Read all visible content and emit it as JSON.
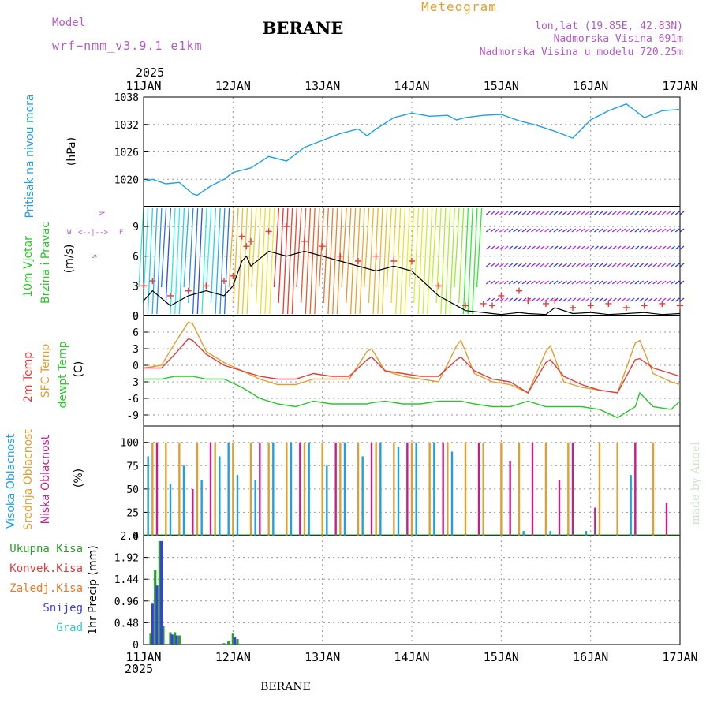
{
  "header": {
    "model_label": "Model",
    "model_name": "wrf−nmm_v3.9.1  e1km",
    "station": "BERANE",
    "meteogram": "Meteogram",
    "coords": "lon,lat (19.85E, 42.83N)",
    "altitude": "Nadmorska Visina 691m",
    "model_altitude": "Nadmorska Visina u modelu 720.25m",
    "footer_station": "BERANE",
    "credit": "made by Angel"
  },
  "colors": {
    "pressure": "#1ea0e6",
    "wind_speed": "#000000",
    "gust": "#e63c3c",
    "temp2m": "#e63c3c",
    "sfc_temp": "#e0a030",
    "dewpt": "#28c828",
    "high_cloud": "#1ea0e6",
    "mid_cloud": "#e0a030",
    "low_cloud": "#c81e8c",
    "total_precip": "#28a028",
    "conv_precip": "#e63c3c",
    "frozen_precip": "#f07828",
    "snow": "#3c3ce6",
    "graupel": "#28c8c8",
    "label_purple": "#b45ac8"
  },
  "chart_data": [
    {
      "type": "line",
      "panel": "pressure",
      "ylabel": "Pritisak na nivou mora",
      "unit": "(hPa)",
      "ylim": [
        1014,
        1038
      ],
      "yticks": [
        "1020",
        "1026",
        "1032",
        "1038"
      ],
      "year": "2025",
      "x_top_labels": [
        "11JAN",
        "12JAN",
        "13JAN",
        "14JAN",
        "15JAN",
        "16JAN",
        "17JAN"
      ],
      "x": [
        0,
        0.1,
        0.25,
        0.4,
        0.55,
        0.6,
        0.75,
        0.9,
        1.0,
        1.2,
        1.4,
        1.6,
        1.8,
        2.0,
        2.2,
        2.4,
        2.5,
        2.6,
        2.8,
        3.0,
        3.2,
        3.4,
        3.5,
        3.6,
        3.8,
        4.0,
        4.2,
        4.4,
        4.6,
        4.8,
        5.0,
        5.2,
        5.4,
        5.6,
        5.8,
        6.0
      ],
      "series": [
        {
          "values": [
            1019.5,
            1020.0,
            1019.0,
            1019.3,
            1016.8,
            1016.5,
            1018.5,
            1020.0,
            1021.5,
            1022.5,
            1025.0,
            1024.0,
            1027.0,
            1028.5,
            1030.0,
            1031.0,
            1029.5,
            1031.0,
            1033.5,
            1034.5,
            1033.8,
            1034.0,
            1033.0,
            1033.5,
            1034.0,
            1034.2,
            1032.8,
            1031.8,
            1030.5,
            1029.0,
            1033.0,
            1035.0,
            1036.5,
            1033.5,
            1035.0,
            1035.3
          ]
        }
      ]
    },
    {
      "type": "line",
      "panel": "wind",
      "ylabel": "10m Vjetar",
      "ylabel2": "Brzina i Pravac",
      "unit": "(m/s)",
      "compass": {
        "n": "N",
        "s": "S",
        "e": "E",
        "w": "W",
        "arrows": "<--|-->"
      },
      "ylim": [
        0,
        11
      ],
      "yticks": [
        "0",
        "3",
        "6",
        "9"
      ],
      "x": [
        0,
        0.1,
        0.3,
        0.5,
        0.7,
        0.9,
        1.0,
        1.1,
        1.15,
        1.2,
        1.4,
        1.6,
        1.8,
        2.0,
        2.2,
        2.4,
        2.6,
        2.8,
        3.0,
        3.3,
        3.6,
        3.8,
        3.9,
        4.0,
        4.2,
        4.3,
        4.5,
        4.6,
        4.8,
        5.0,
        5.2,
        5.4,
        5.6,
        5.8,
        6.0
      ],
      "series": [
        {
          "name": "speed",
          "values": [
            1.5,
            2.5,
            1.0,
            2.0,
            2.5,
            2.0,
            3.0,
            5.5,
            6.0,
            5.0,
            6.5,
            6.0,
            6.5,
            6.0,
            5.5,
            5.0,
            4.5,
            5.0,
            4.5,
            2.0,
            0.5,
            0.3,
            0.2,
            0.1,
            0.3,
            0.2,
            0.1,
            0.8,
            0.2,
            0.3,
            0.1,
            0.2,
            0.3,
            0.1,
            0.2
          ]
        },
        {
          "name": "gust",
          "values": [
            3.0,
            3.5,
            2.0,
            2.5,
            3.0,
            3.5,
            4.0,
            8.0,
            7.0,
            7.5,
            8.5,
            9.0,
            7.5,
            7.0,
            6.0,
            5.5,
            6.0,
            5.5,
            5.5,
            3.0,
            1.0,
            1.2,
            1.0,
            2.0,
            2.5,
            1.5,
            1.2,
            1.5,
            0.8,
            1.0,
            1.2,
            0.8,
            1.0,
            1.2,
            1.0
          ]
        }
      ]
    },
    {
      "type": "line",
      "panel": "temperature",
      "ylabels": [
        "2m Temp",
        "SFC Temp",
        "dewpt Temp"
      ],
      "unit": "(C)",
      "ylim": [
        -11,
        9
      ],
      "yticks": [
        "-9",
        "-6",
        "-3",
        "0",
        "3",
        "6",
        "9"
      ],
      "x": [
        0,
        0.2,
        0.35,
        0.5,
        0.55,
        0.7,
        0.9,
        1.1,
        1.3,
        1.5,
        1.7,
        1.9,
        2.1,
        2.3,
        2.5,
        2.55,
        2.7,
        2.9,
        3.1,
        3.3,
        3.5,
        3.55,
        3.7,
        3.9,
        4.1,
        4.3,
        4.5,
        4.55,
        4.7,
        4.9,
        5.1,
        5.3,
        5.5,
        5.55,
        5.7,
        5.9,
        6.0
      ],
      "series": [
        {
          "name": "2m",
          "values": [
            -0.5,
            -0.5,
            2.0,
            4.8,
            4.5,
            2.0,
            0.0,
            -1.0,
            -2.0,
            -2.5,
            -2.5,
            -1.5,
            -2.0,
            -2.0,
            1.0,
            1.5,
            -1.0,
            -1.5,
            -2.0,
            -2.0,
            1.0,
            1.5,
            -1.0,
            -2.5,
            -3.0,
            -5.0,
            0.5,
            1.0,
            -2.0,
            -3.5,
            -4.5,
            -5.0,
            1.0,
            1.2,
            -0.5,
            -1.5,
            -2.0
          ]
        },
        {
          "name": "sfc",
          "values": [
            -0.5,
            0.0,
            4.0,
            7.8,
            7.5,
            2.5,
            0.5,
            -1.0,
            -2.5,
            -3.5,
            -3.5,
            -2.5,
            -2.5,
            -2.5,
            2.5,
            3.0,
            -1.0,
            -2.0,
            -2.5,
            -3.0,
            3.5,
            4.5,
            -1.5,
            -3.0,
            -3.5,
            -5.0,
            2.5,
            3.5,
            -3.0,
            -4.0,
            -4.5,
            -5.0,
            4.0,
            4.5,
            -1.5,
            -3.0,
            -3.5
          ]
        },
        {
          "name": "dewpt",
          "values": [
            -2.5,
            -2.5,
            -2.0,
            -2.0,
            -2.0,
            -2.5,
            -2.5,
            -4.0,
            -6.0,
            -7.0,
            -7.5,
            -6.5,
            -7.0,
            -7.0,
            -7.0,
            -6.8,
            -6.5,
            -7.0,
            -7.0,
            -6.5,
            -6.5,
            -6.5,
            -7.0,
            -7.5,
            -7.5,
            -6.5,
            -7.5,
            -7.5,
            -7.5,
            -7.5,
            -8.0,
            -9.5,
            -7.5,
            -5.0,
            -7.5,
            -8.0,
            -6.5
          ]
        }
      ]
    },
    {
      "type": "bar",
      "panel": "clouds",
      "ylabels": [
        "Visoka Oblacnost",
        "Srednja Oblacnost",
        "Niska Oblacnost"
      ],
      "unit": "(%)",
      "ylim": [
        0,
        100
      ],
      "yticks": [
        "0",
        "25",
        "50",
        "75",
        "100"
      ],
      "series": [
        {
          "name": "high",
          "x": [
            0.05,
            0.3,
            0.45,
            0.65,
            0.85,
            0.95,
            1.05,
            1.25,
            1.45,
            1.65,
            1.85,
            2.05,
            2.25,
            2.45,
            2.65,
            2.85,
            3.05,
            3.25,
            3.45,
            4.25,
            4.55,
            4.95,
            5.3,
            5.45
          ],
          "values": [
            85,
            55,
            75,
            60,
            85,
            100,
            65,
            60,
            100,
            100,
            100,
            75,
            100,
            85,
            100,
            95,
            100,
            100,
            90,
            5,
            5,
            5,
            28,
            65
          ]
        },
        {
          "name": "mid",
          "x": [
            0.1,
            0.25,
            0.4,
            0.6,
            0.8,
            1.0,
            1.2,
            1.4,
            1.6,
            1.8,
            2.0,
            2.2,
            2.4,
            2.6,
            2.8,
            3.0,
            3.2,
            3.4,
            3.6,
            3.8,
            4.0,
            4.2,
            4.5,
            4.75,
            5.1,
            5.3,
            5.5,
            5.7
          ],
          "values": [
            100,
            100,
            100,
            100,
            100,
            100,
            100,
            100,
            100,
            100,
            100,
            100,
            100,
            100,
            100,
            100,
            100,
            100,
            100,
            100,
            100,
            100,
            100,
            100,
            100,
            100,
            100,
            100
          ]
        },
        {
          "name": "low",
          "x": [
            0.15,
            0.55,
            0.75,
            1.3,
            1.75,
            2.15,
            2.55,
            2.95,
            3.35,
            3.75,
            4.1,
            4.35,
            4.65,
            4.8,
            5.05,
            5.5,
            5.85,
            6.15,
            6.35,
            6.55,
            6.65,
            6.85,
            7.05,
            7.1
          ],
          "values": [
            100,
            50,
            100,
            100,
            100,
            100,
            100,
            100,
            100,
            100,
            80,
            100,
            60,
            100,
            30,
            100,
            35,
            70,
            70,
            95,
            95,
            10,
            35,
            55
          ]
        }
      ]
    },
    {
      "type": "bar",
      "panel": "precip",
      "ylabels": [
        "Ukupna Kisa",
        "Konvek.Kisa",
        "Zaledj.Kisa",
        "Snijeg",
        "Grad"
      ],
      "unit": "1hr Precip (mm)",
      "ylim": [
        0,
        2.4
      ],
      "yticks": [
        "0",
        "0.48",
        "0.96",
        "1.44",
        "1.92",
        "2.4"
      ],
      "x_bottom_labels": [
        "11JAN",
        "12JAN",
        "13JAN",
        "14JAN",
        "15JAN",
        "16JAN",
        "17JAN"
      ],
      "year": "2025",
      "series": [
        {
          "name": "total",
          "x": [
            0.08,
            0.13,
            0.18,
            0.22,
            0.3,
            0.35,
            0.4,
            0.9,
            0.95,
            1.0,
            1.05
          ],
          "values": [
            0.24,
            1.65,
            2.28,
            0.4,
            0.27,
            0.27,
            0.2,
            0.03,
            0.08,
            0.24,
            0.12
          ]
        },
        {
          "name": "snow",
          "x": [
            0.1,
            0.15,
            0.2,
            0.32,
            0.37,
            1.02
          ],
          "values": [
            0.9,
            1.3,
            2.28,
            0.22,
            0.2,
            0.16
          ]
        }
      ]
    }
  ]
}
